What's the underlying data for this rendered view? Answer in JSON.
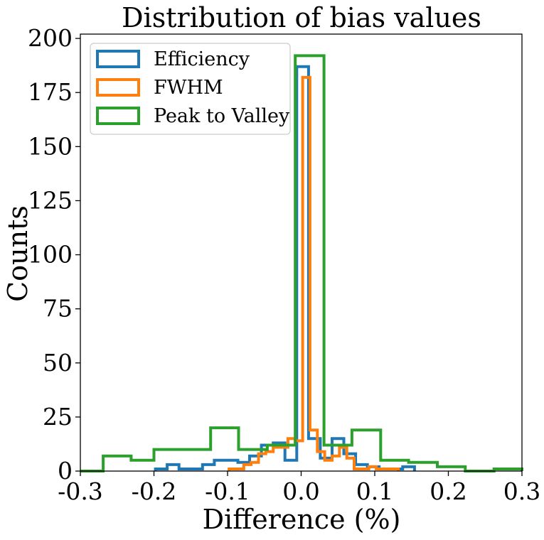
{
  "chart_data": {
    "type": "histogram",
    "title": "Distribution of bias values",
    "xlabel": "Difference (%)",
    "ylabel": "Counts",
    "xlim": [
      -0.3,
      0.3
    ],
    "ylim": [
      0,
      202
    ],
    "x_ticks": [
      -0.3,
      -0.2,
      -0.1,
      0.0,
      0.1,
      0.2,
      0.3
    ],
    "x_tick_labels": [
      "-0.3",
      "-0.2",
      "-0.1",
      "0.0",
      "0.1",
      "0.2",
      "0.3"
    ],
    "y_ticks": [
      0,
      25,
      50,
      75,
      100,
      125,
      150,
      175,
      200
    ],
    "y_tick_labels": [
      "0",
      "25",
      "50",
      "75",
      "100",
      "125",
      "150",
      "175",
      "200"
    ],
    "grid": false,
    "legend_position": "top-left",
    "series": [
      {
        "name": "Efficiency",
        "color": "#1f77b4",
        "bin_edges": [
          -0.198,
          -0.182,
          -0.166,
          -0.15,
          -0.134,
          -0.118,
          -0.102,
          -0.086,
          -0.07,
          -0.054,
          -0.038,
          -0.022,
          -0.006,
          0.01,
          0.026,
          0.042,
          0.058,
          0.074,
          0.09,
          0.106,
          0.122,
          0.138,
          0.154
        ],
        "counts": [
          1,
          3,
          1,
          1,
          3,
          5,
          5,
          4,
          7,
          12,
          13,
          5,
          187,
          15,
          6,
          15,
          8,
          3,
          2,
          1,
          1,
          2
        ]
      },
      {
        "name": "FWHM",
        "color": "#ff7f0e",
        "bin_edges": [
          -0.098,
          -0.088,
          -0.078,
          -0.068,
          -0.058,
          -0.048,
          -0.038,
          -0.028,
          -0.018,
          -0.008,
          0.002,
          0.012,
          0.022,
          0.032,
          0.042,
          0.052,
          0.062,
          0.072,
          0.082,
          0.092,
          0.102,
          0.112,
          0.122,
          0.132
        ],
        "counts": [
          1,
          1,
          3,
          4,
          8,
          9,
          11,
          11,
          15,
          14,
          182,
          19,
          9,
          5,
          7,
          11,
          6,
          1,
          1,
          2,
          1,
          1,
          1
        ]
      },
      {
        "name": "Peak to Valley",
        "color": "#2ca02c",
        "bin_edges": [
          -0.3,
          -0.269,
          -0.231,
          -0.2,
          -0.162,
          -0.123,
          -0.085,
          -0.046,
          -0.008,
          0.031,
          0.069,
          0.108,
          0.146,
          0.185,
          0.223,
          0.262,
          0.3
        ],
        "counts": [
          0,
          7,
          5,
          10,
          10,
          20,
          10,
          12,
          192,
          12,
          19,
          5,
          4,
          2,
          0,
          1
        ]
      }
    ]
  }
}
